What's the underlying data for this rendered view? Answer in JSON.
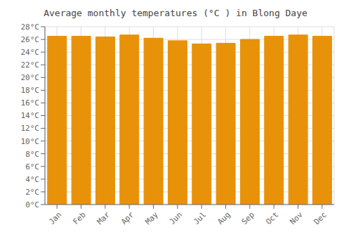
{
  "chart_data": {
    "type": "bar",
    "title": "Average monthly temperatures (°C ) in Blong Daye",
    "categories": [
      "Jan",
      "Feb",
      "Mar",
      "Apr",
      "May",
      "Jun",
      "Jul",
      "Aug",
      "Sep",
      "Oct",
      "Nov",
      "Dec"
    ],
    "values": [
      26.5,
      26.5,
      26.4,
      26.7,
      26.2,
      25.8,
      25.3,
      25.4,
      26.0,
      26.5,
      26.7,
      26.5
    ],
    "color": "#E8920A",
    "ylim": [
      0,
      28
    ],
    "yticks": [
      {
        "value": 0,
        "label": "0°C"
      },
      {
        "value": 2,
        "label": "2°C"
      },
      {
        "value": 4,
        "label": "4°C"
      },
      {
        "value": 6,
        "label": "6°C"
      },
      {
        "value": 8,
        "label": "8°C"
      },
      {
        "value": 10,
        "label": "10°C"
      },
      {
        "value": 12,
        "label": "12°C"
      },
      {
        "value": 14,
        "label": "14°C"
      },
      {
        "value": 16,
        "label": "16°C"
      },
      {
        "value": 18,
        "label": "18°C"
      },
      {
        "value": 20,
        "label": "20°C"
      },
      {
        "value": 22,
        "label": "22°C"
      },
      {
        "value": 24,
        "label": "24°C"
      },
      {
        "value": 26,
        "label": "26°C"
      },
      {
        "value": 28,
        "label": "28°C"
      }
    ],
    "grid": true
  }
}
